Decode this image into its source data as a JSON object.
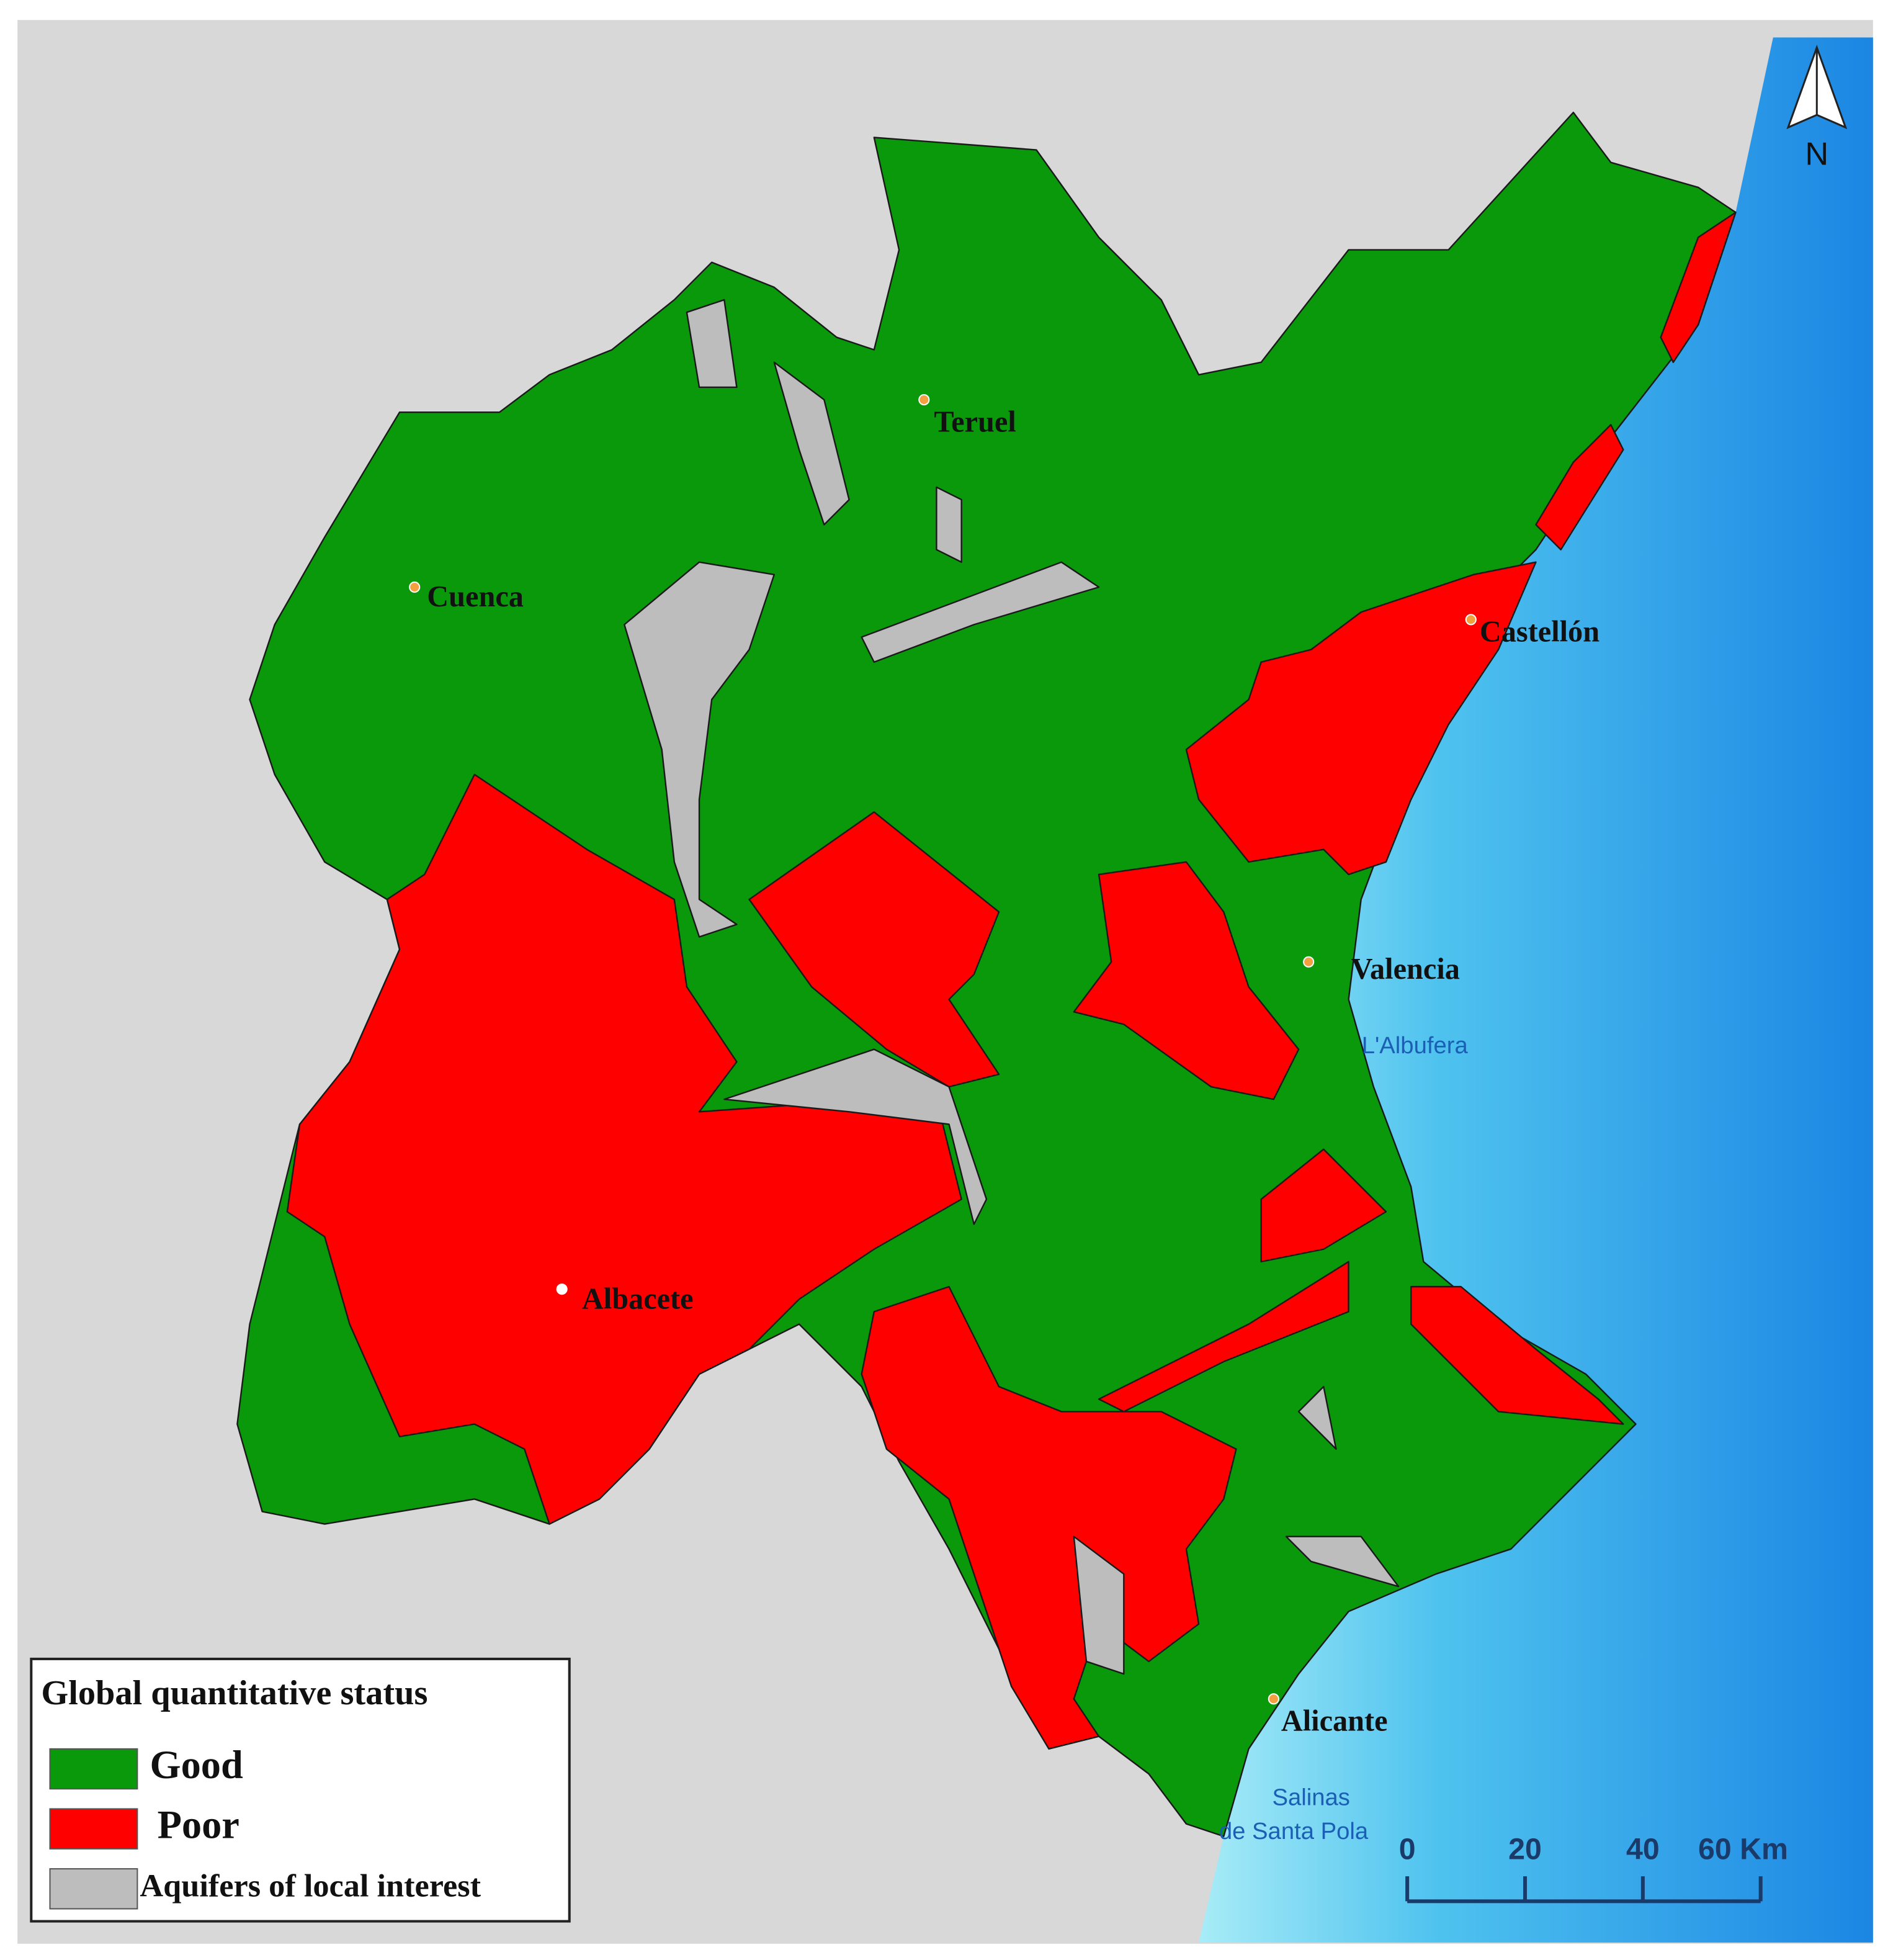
{
  "map": {
    "north": "N",
    "legend": {
      "title": "Global quantitative status",
      "items": [
        {
          "label": "Good",
          "color": "#0a990a"
        },
        {
          "label": "Poor",
          "color": "#ff0000"
        },
        {
          "label": "Aquifers of local interest",
          "color": "#bdbdbd"
        }
      ]
    },
    "places": [
      "Teruel",
      "Cuenca",
      "Castellón",
      "Valencia",
      "Albacete",
      "Alicante"
    ],
    "water_labels": [
      {
        "lines": [
          "L'Albufera"
        ]
      },
      {
        "lines": [
          "Salinas",
          "de Santa Pola"
        ]
      }
    ],
    "scale_bar": {
      "range": [
        0,
        60
      ],
      "ticks": [
        0,
        20,
        40,
        {
          "value": 60,
          "label": "60 Km"
        }
      ]
    }
  }
}
